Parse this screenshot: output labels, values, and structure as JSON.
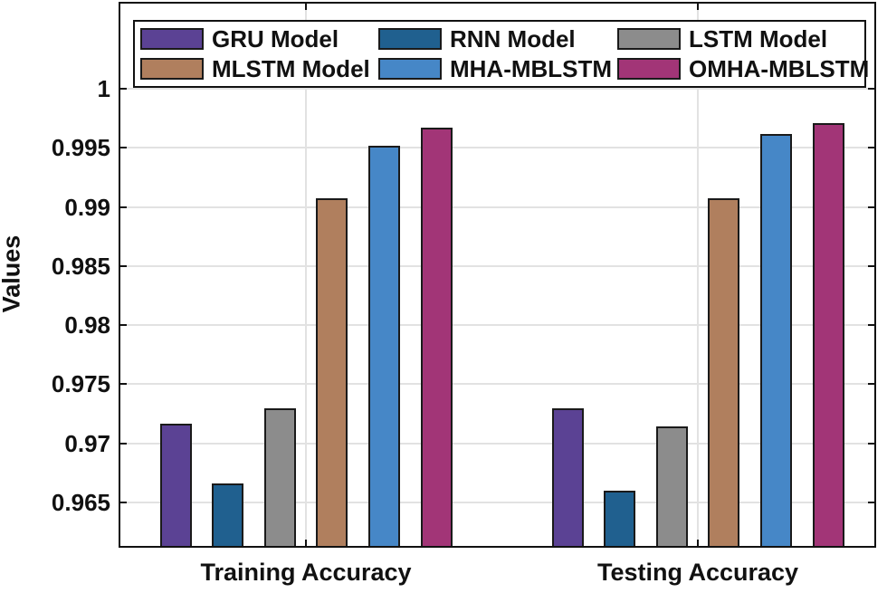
{
  "figure": {
    "background_color": "#ffffff",
    "axis_color": "#111111",
    "grid_color": "#e2e2e2",
    "bar_edge_color": "#1a1a1a"
  },
  "chart_data": {
    "type": "bar",
    "title": "",
    "xlabel": "",
    "ylabel": "Values",
    "categories": [
      "Training Accuracy",
      "Testing Accuracy"
    ],
    "series": [
      {
        "name": "GRU Model",
        "color": "#5b4294",
        "values": [
          0.9717,
          0.973
        ]
      },
      {
        "name": "RNN Model",
        "color": "#20608f",
        "values": [
          0.9666,
          0.966
        ]
      },
      {
        "name": "LSTM Model",
        "color": "#8c8c8c",
        "values": [
          0.973,
          0.9714
        ]
      },
      {
        "name": "MLSTM Model",
        "color": "#b07f5e",
        "values": [
          0.9907,
          0.9907
        ]
      },
      {
        "name": "MHA-MBLSTM",
        "color": "#4687c7",
        "values": [
          0.9952,
          0.9962
        ]
      },
      {
        "name": "OMHA-MBLSTM",
        "color": "#a23577",
        "values": [
          0.9967,
          0.9971
        ]
      }
    ],
    "yticks": [
      1,
      0.995,
      0.99,
      0.985,
      0.98,
      0.975,
      0.97,
      0.965
    ],
    "ytick_labels": [
      "1",
      "0.995",
      "0.99",
      "0.985",
      "0.98",
      "0.975",
      "0.97",
      "0.965"
    ],
    "ylim": [
      0.96117,
      1.00735
    ],
    "grid": true,
    "legend_position": "top-inside",
    "legend_rows": 2,
    "legend_columns": 3
  }
}
